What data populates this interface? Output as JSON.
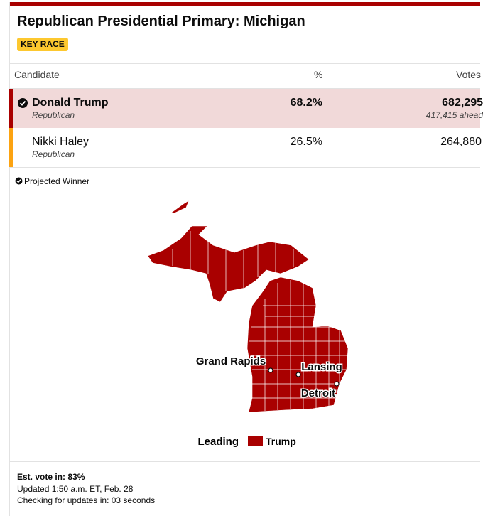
{
  "header": {
    "title": "Republican Presidential Primary: Michigan",
    "badge": "KEY RACE"
  },
  "table": {
    "columns": [
      "Candidate",
      "%",
      "Votes"
    ],
    "rows": [
      {
        "name": "Donald Trump",
        "party": "Republican",
        "percent": "68.2%",
        "votes": "682,295",
        "margin": "417,415 ahead"
      },
      {
        "name": "Nikki Haley",
        "party": "Republican",
        "percent": "26.5%",
        "votes": "264,880"
      }
    ]
  },
  "note": "Projected Winner",
  "map": {
    "cities": [
      "Grand Rapids",
      "Lansing",
      "Detroit"
    ],
    "legend": {
      "title": "Leading",
      "item": "Trump"
    }
  },
  "footer": {
    "estimate": "Est. vote in: 83%",
    "updated": "Updated 1:50 a.m. ET, Feb. 28",
    "checking": "Checking for updates in: 03 seconds"
  }
}
